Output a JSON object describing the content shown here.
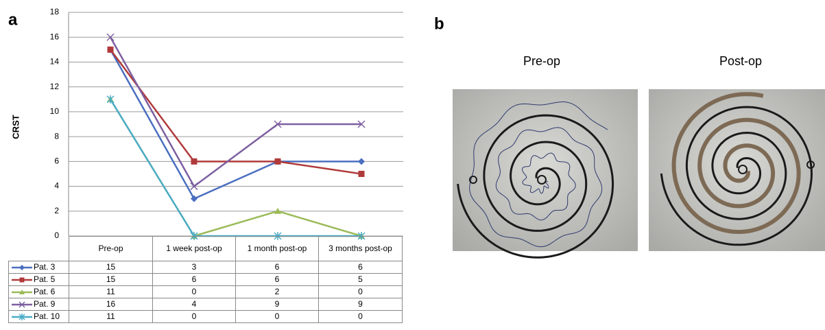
{
  "panel_labels": [
    "a",
    "b"
  ],
  "chart_data": {
    "type": "line",
    "ylabel": "CRST",
    "categories": [
      "Pre-op",
      "1 week post-op",
      "1 month post-op",
      "3 months post-op"
    ],
    "series": [
      {
        "name": "Pat. 3",
        "color": "#4a6fc0",
        "marker": "diamond",
        "values": [
          15,
          3,
          6,
          6
        ]
      },
      {
        "name": "Pat. 5",
        "color": "#b03a3a",
        "marker": "square",
        "values": [
          15,
          6,
          6,
          5
        ]
      },
      {
        "name": "Pat. 6",
        "color": "#9bbb59",
        "marker": "triangle",
        "values": [
          11,
          0,
          2,
          0
        ]
      },
      {
        "name": "Pat. 9",
        "color": "#7d5fa0",
        "marker": "x",
        "values": [
          16,
          4,
          9,
          9
        ]
      },
      {
        "name": "Pat. 10",
        "color": "#4bacc6",
        "marker": "star",
        "values": [
          11,
          0,
          0,
          0
        ]
      }
    ],
    "ylim": [
      0,
      18
    ],
    "yticks": [
      0,
      2,
      4,
      6,
      8,
      10,
      12,
      14,
      16,
      18
    ],
    "grid": true
  },
  "photos": {
    "labels": [
      "Pre-op",
      "Post-op"
    ]
  }
}
